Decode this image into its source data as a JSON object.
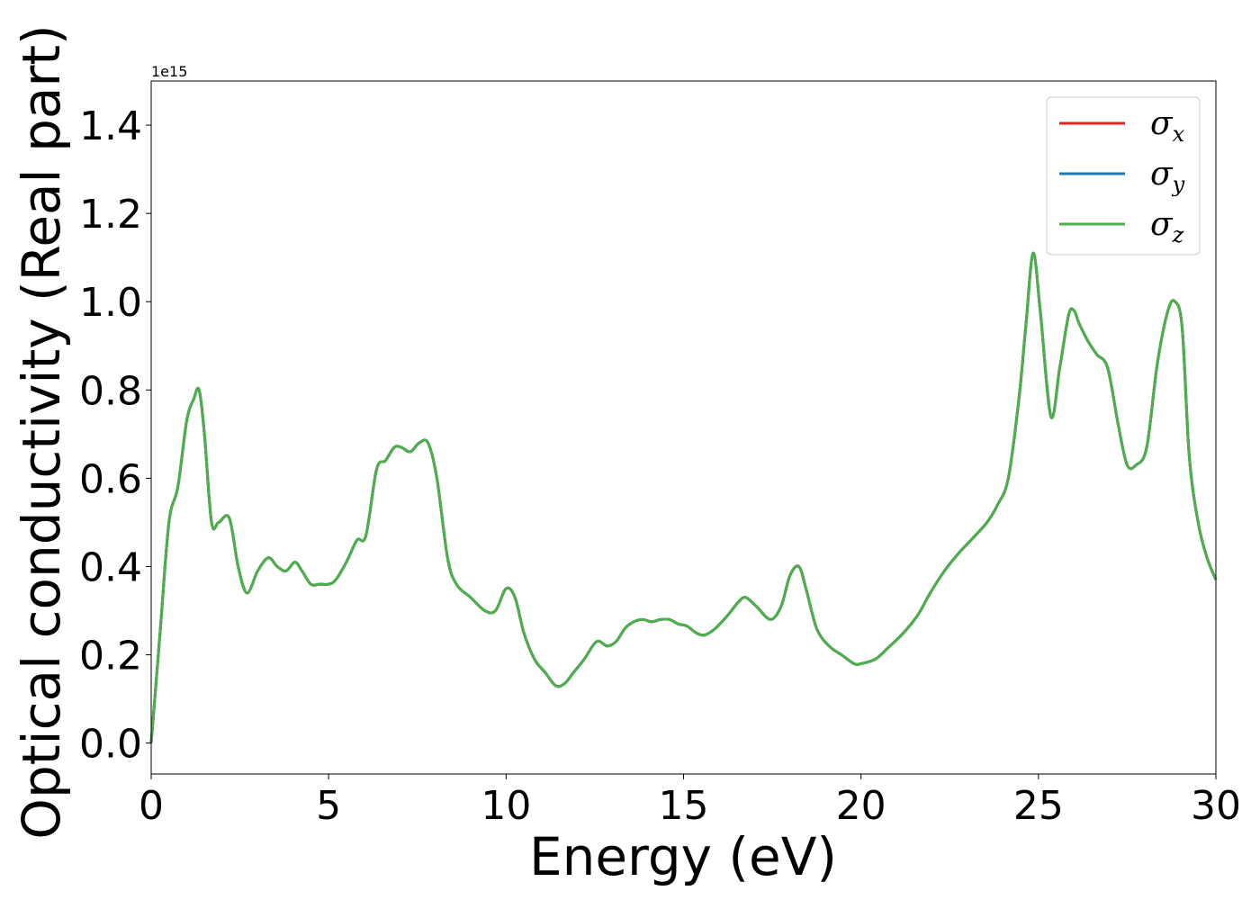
{
  "chart_data": {
    "type": "line",
    "title": "",
    "xlabel": "Energy (eV)",
    "ylabel": "Optical conductivity (Real part)",
    "y_offset_text": "1e15",
    "y_scale": 1000000000000000.0,
    "xlim": [
      0,
      30
    ],
    "ylim": [
      -0.07,
      1.5
    ],
    "x_ticks": [
      0,
      5,
      10,
      15,
      20,
      25,
      30
    ],
    "x_tick_labels": [
      "0",
      "5",
      "10",
      "15",
      "20",
      "25",
      "30"
    ],
    "y_ticks": [
      0.0,
      0.2,
      0.4,
      0.6,
      0.8,
      1.0,
      1.2,
      1.4
    ],
    "y_tick_labels": [
      "0.0",
      "0.2",
      "0.4",
      "0.6",
      "0.8",
      "1.0",
      "1.2",
      "1.4"
    ],
    "grid": false,
    "legend_position": "top-right",
    "x": [
      0,
      0.25,
      0.5,
      0.75,
      1.0,
      1.2,
      1.35,
      1.5,
      1.7,
      1.9,
      2.2,
      2.45,
      2.7,
      3.0,
      3.3,
      3.55,
      3.8,
      4.05,
      4.25,
      4.5,
      4.75,
      5.0,
      5.2,
      5.5,
      5.8,
      6.05,
      6.35,
      6.6,
      6.85,
      7.05,
      7.3,
      7.55,
      7.8,
      8.05,
      8.35,
      8.6,
      9.0,
      9.4,
      9.7,
      10.0,
      10.25,
      10.5,
      10.8,
      11.1,
      11.4,
      11.65,
      11.9,
      12.2,
      12.55,
      12.85,
      13.1,
      13.35,
      13.6,
      13.85,
      14.1,
      14.35,
      14.6,
      14.85,
      15.1,
      15.35,
      15.6,
      15.9,
      16.25,
      16.55,
      16.75,
      17.05,
      17.45,
      17.75,
      18.0,
      18.25,
      18.45,
      18.75,
      19.1,
      19.45,
      19.8,
      20.0,
      20.4,
      20.75,
      21.2,
      21.6,
      21.95,
      22.35,
      22.75,
      23.1,
      23.55,
      23.85,
      24.15,
      24.45,
      24.65,
      24.85,
      25.05,
      25.35,
      25.6,
      25.85,
      26.0,
      26.15,
      26.4,
      26.65,
      26.95,
      27.25,
      27.5,
      27.75,
      28.05,
      28.35,
      28.65,
      28.85,
      29.05,
      29.25,
      29.5,
      29.75,
      30.0
    ],
    "series": [
      {
        "name": "σx",
        "label_base": "σ",
        "label_sub": "x",
        "color": "#d62728",
        "values": [
          0.0,
          0.25,
          0.5,
          0.58,
          0.73,
          0.78,
          0.8,
          0.7,
          0.5,
          0.5,
          0.51,
          0.4,
          0.34,
          0.39,
          0.42,
          0.4,
          0.39,
          0.41,
          0.39,
          0.36,
          0.36,
          0.36,
          0.37,
          0.41,
          0.46,
          0.47,
          0.62,
          0.64,
          0.67,
          0.67,
          0.66,
          0.68,
          0.68,
          0.6,
          0.42,
          0.36,
          0.33,
          0.3,
          0.3,
          0.35,
          0.33,
          0.25,
          0.19,
          0.16,
          0.13,
          0.135,
          0.16,
          0.19,
          0.23,
          0.22,
          0.23,
          0.26,
          0.275,
          0.28,
          0.275,
          0.28,
          0.28,
          0.27,
          0.265,
          0.25,
          0.245,
          0.26,
          0.29,
          0.32,
          0.33,
          0.31,
          0.28,
          0.31,
          0.38,
          0.4,
          0.35,
          0.26,
          0.22,
          0.2,
          0.18,
          0.18,
          0.19,
          0.215,
          0.25,
          0.29,
          0.34,
          0.39,
          0.43,
          0.46,
          0.5,
          0.54,
          0.6,
          0.78,
          0.95,
          1.11,
          0.98,
          0.74,
          0.85,
          0.97,
          0.98,
          0.95,
          0.91,
          0.88,
          0.85,
          0.72,
          0.63,
          0.63,
          0.67,
          0.86,
          0.98,
          1.0,
          0.94,
          0.65,
          0.5,
          0.42,
          0.37
        ]
      },
      {
        "name": "σy",
        "label_base": "σ",
        "label_sub": "y",
        "color": "#1f77b4",
        "values": [
          0.0,
          0.25,
          0.5,
          0.58,
          0.73,
          0.78,
          0.8,
          0.7,
          0.5,
          0.5,
          0.51,
          0.4,
          0.34,
          0.39,
          0.42,
          0.4,
          0.39,
          0.41,
          0.39,
          0.36,
          0.36,
          0.36,
          0.37,
          0.41,
          0.46,
          0.47,
          0.62,
          0.64,
          0.67,
          0.67,
          0.66,
          0.68,
          0.68,
          0.6,
          0.42,
          0.36,
          0.33,
          0.3,
          0.3,
          0.35,
          0.33,
          0.25,
          0.19,
          0.16,
          0.13,
          0.135,
          0.16,
          0.19,
          0.23,
          0.22,
          0.23,
          0.26,
          0.275,
          0.28,
          0.275,
          0.28,
          0.28,
          0.27,
          0.265,
          0.25,
          0.245,
          0.26,
          0.29,
          0.32,
          0.33,
          0.31,
          0.28,
          0.31,
          0.38,
          0.4,
          0.35,
          0.26,
          0.22,
          0.2,
          0.18,
          0.18,
          0.19,
          0.215,
          0.25,
          0.29,
          0.34,
          0.39,
          0.43,
          0.46,
          0.5,
          0.54,
          0.6,
          0.78,
          0.95,
          1.11,
          0.98,
          0.74,
          0.85,
          0.97,
          0.98,
          0.95,
          0.91,
          0.88,
          0.85,
          0.72,
          0.63,
          0.63,
          0.67,
          0.86,
          0.98,
          1.0,
          0.94,
          0.65,
          0.5,
          0.42,
          0.37
        ]
      },
      {
        "name": "σz",
        "label_base": "σ",
        "label_sub": "z",
        "color": "#4daf4a",
        "values": [
          0.0,
          0.25,
          0.5,
          0.58,
          0.73,
          0.78,
          0.8,
          0.7,
          0.5,
          0.5,
          0.51,
          0.4,
          0.34,
          0.39,
          0.42,
          0.4,
          0.39,
          0.41,
          0.39,
          0.36,
          0.36,
          0.36,
          0.37,
          0.41,
          0.46,
          0.47,
          0.62,
          0.64,
          0.67,
          0.67,
          0.66,
          0.68,
          0.68,
          0.6,
          0.42,
          0.36,
          0.33,
          0.3,
          0.3,
          0.35,
          0.33,
          0.25,
          0.19,
          0.16,
          0.13,
          0.135,
          0.16,
          0.19,
          0.23,
          0.22,
          0.23,
          0.26,
          0.275,
          0.28,
          0.275,
          0.28,
          0.28,
          0.27,
          0.265,
          0.25,
          0.245,
          0.26,
          0.29,
          0.32,
          0.33,
          0.31,
          0.28,
          0.31,
          0.38,
          0.4,
          0.35,
          0.26,
          0.22,
          0.2,
          0.18,
          0.18,
          0.19,
          0.215,
          0.25,
          0.29,
          0.34,
          0.39,
          0.43,
          0.46,
          0.5,
          0.54,
          0.6,
          0.78,
          0.95,
          1.11,
          0.98,
          0.74,
          0.85,
          0.97,
          0.98,
          0.95,
          0.91,
          0.88,
          0.85,
          0.72,
          0.63,
          0.63,
          0.67,
          0.86,
          0.98,
          1.0,
          0.94,
          0.65,
          0.5,
          0.42,
          0.37
        ]
      }
    ]
  }
}
